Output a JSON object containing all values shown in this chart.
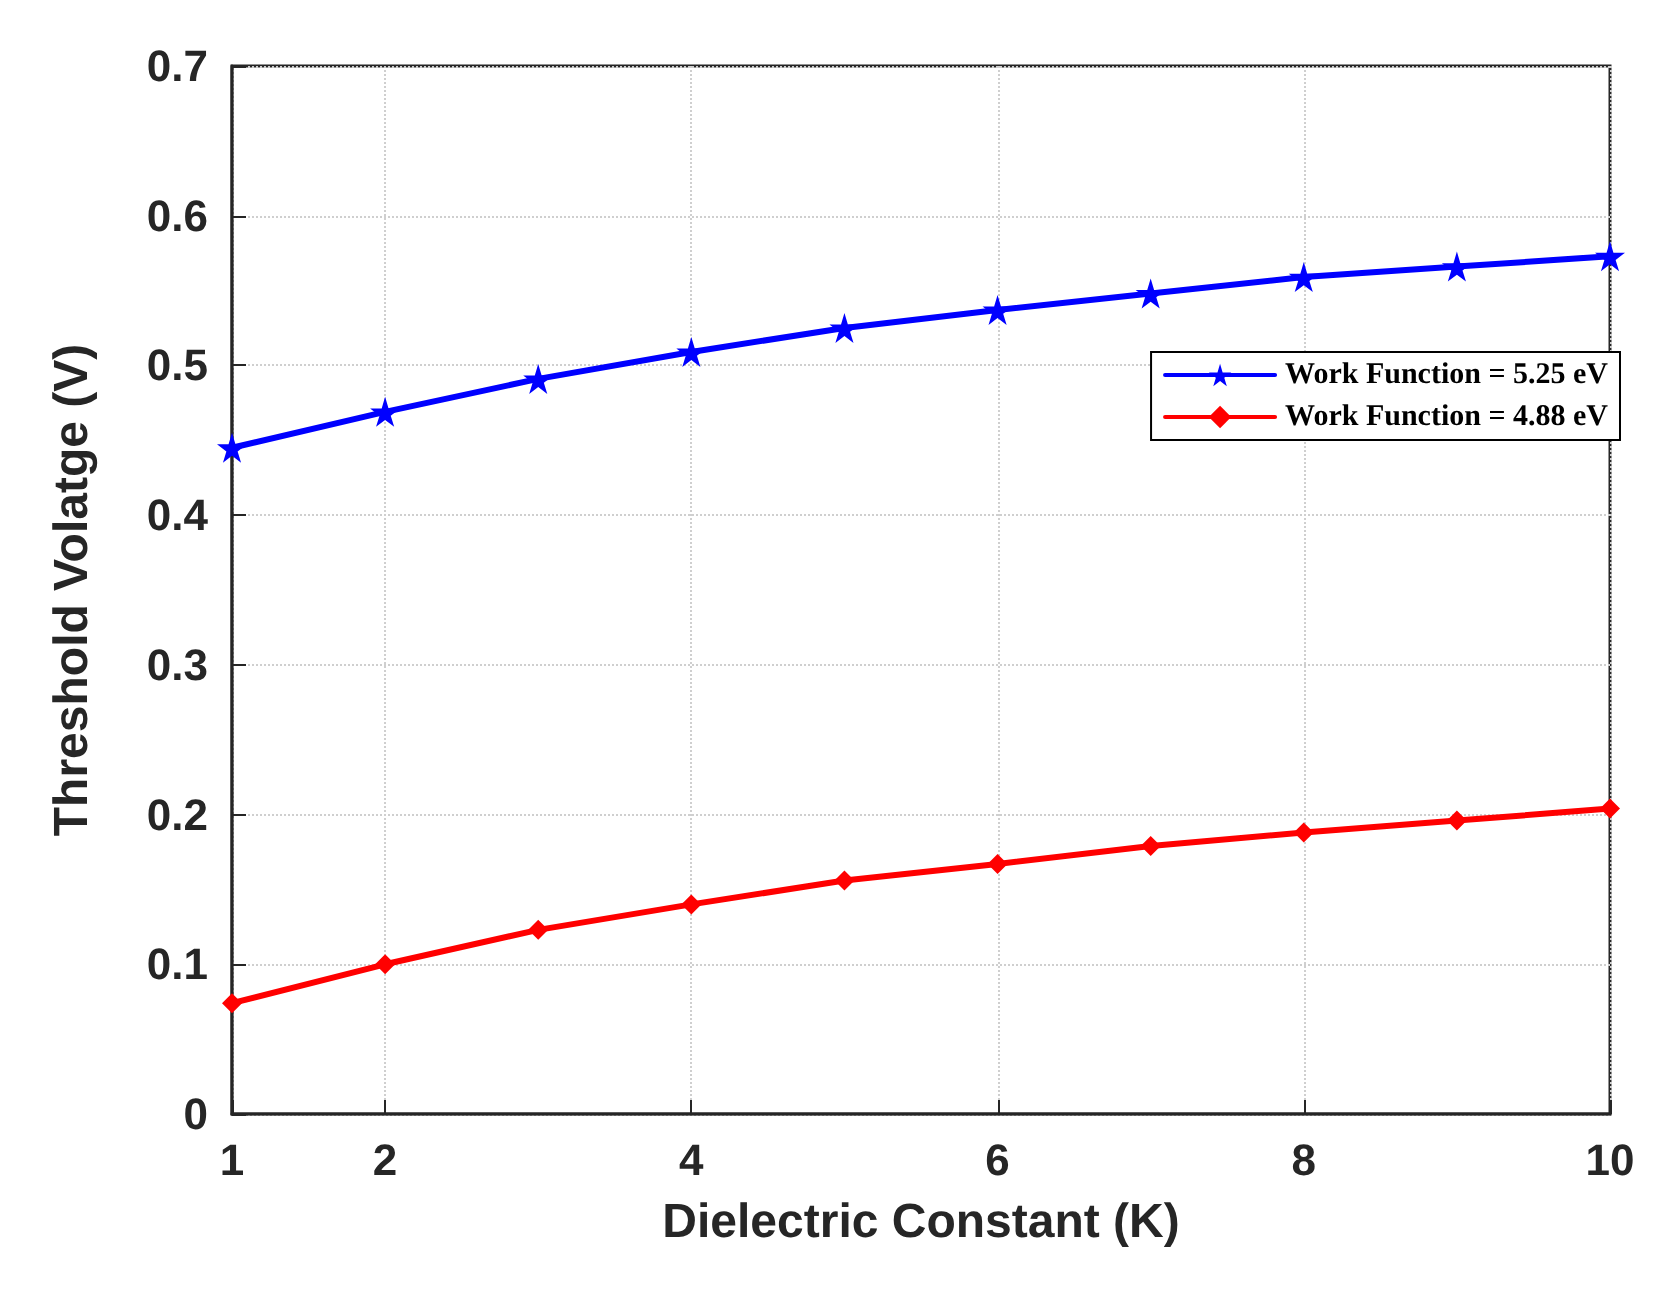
{
  "chart_data": {
    "type": "line",
    "xlabel": "Dielectric Constant (K)",
    "ylabel": "Threshold Volatge (V)",
    "x": [
      1,
      2,
      3,
      4,
      5,
      6,
      7,
      8,
      9,
      10
    ],
    "series": [
      {
        "name": "Work Function = 5.25 eV",
        "color": "#0000ff",
        "marker": "star",
        "values": [
          0.445,
          0.469,
          0.491,
          0.509,
          0.525,
          0.537,
          0.548,
          0.559,
          0.566,
          0.573
        ]
      },
      {
        "name": "Work Function = 4.88 eV",
        "color": "#ff0000",
        "marker": "diamond",
        "values": [
          0.074,
          0.1,
          0.123,
          0.14,
          0.156,
          0.167,
          0.179,
          0.188,
          0.196,
          0.204
        ]
      }
    ],
    "xlim": [
      1,
      10
    ],
    "xticks": [
      1,
      2,
      4,
      6,
      8,
      10
    ],
    "ylim": [
      0,
      0.7
    ],
    "yticks": [
      0,
      0.1,
      0.2,
      0.3,
      0.4,
      0.5,
      0.6,
      0.7
    ],
    "grid": true,
    "legend": "right",
    "line_style": "solid"
  }
}
